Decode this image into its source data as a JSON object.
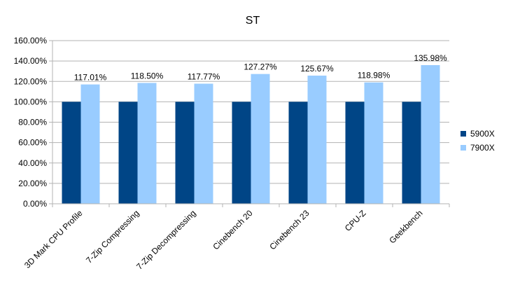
{
  "chart_data": {
    "type": "bar",
    "title": "ST",
    "categories": [
      "3D Mark CPU Profile",
      "7-Zip Compressing",
      "7-Zip Decompressing",
      "Cinebench 20",
      "Cinebench 23",
      "CPU-Z",
      "Geekbench"
    ],
    "series": [
      {
        "name": "5900X",
        "color": "#004586",
        "values": [
          100,
          100,
          100,
          100,
          100,
          100,
          100
        ],
        "labels": [
          "",
          "",
          "",
          "",
          "",
          "",
          ""
        ]
      },
      {
        "name": "7900X",
        "color": "#99ccff",
        "values": [
          117.01,
          118.5,
          117.77,
          127.27,
          125.67,
          118.98,
          135.98
        ],
        "labels": [
          "117.01%",
          "118.50%",
          "117.77%",
          "127.27%",
          "125.67%",
          "118.98%",
          "135.98%"
        ]
      }
    ],
    "y_ticks": [
      "0.00%",
      "20.00%",
      "40.00%",
      "60.00%",
      "80.00%",
      "100.00%",
      "120.00%",
      "140.00%",
      "160.00%"
    ],
    "ylim": [
      0,
      160
    ],
    "y_step": 20,
    "grid": true,
    "legend_position": "right"
  }
}
